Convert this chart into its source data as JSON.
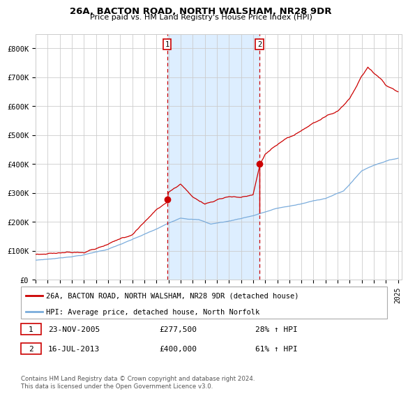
{
  "title": "26A, BACTON ROAD, NORTH WALSHAM, NR28 9DR",
  "subtitle": "Price paid vs. HM Land Registry's House Price Index (HPI)",
  "legend_line1": "26A, BACTON ROAD, NORTH WALSHAM, NR28 9DR (detached house)",
  "legend_line2": "HPI: Average price, detached house, North Norfolk",
  "sale1_date": "23-NOV-2005",
  "sale1_price": 277500,
  "sale1_label": "£277,500",
  "sale1_hpi": "28% ↑ HPI",
  "sale2_date": "16-JUL-2013",
  "sale2_price": 400000,
  "sale2_label": "£400,000",
  "sale2_hpi": "61% ↑ HPI",
  "footer": "Contains HM Land Registry data © Crown copyright and database right 2024.\nThis data is licensed under the Open Government Licence v3.0.",
  "hpi_color": "#7aacdc",
  "price_color": "#cc0000",
  "background_color": "#ffffff",
  "grid_color": "#cccccc",
  "sale_marker_color": "#cc0000",
  "highlight_color": "#ddeeff",
  "ylim": [
    0,
    850000
  ],
  "yticks": [
    0,
    100000,
    200000,
    300000,
    400000,
    500000,
    600000,
    700000,
    800000
  ],
  "ytick_labels": [
    "£0",
    "£100K",
    "£200K",
    "£300K",
    "£400K",
    "£500K",
    "£600K",
    "£700K",
    "£800K"
  ],
  "sale1_year": 2005.89,
  "sale2_year": 2013.54
}
